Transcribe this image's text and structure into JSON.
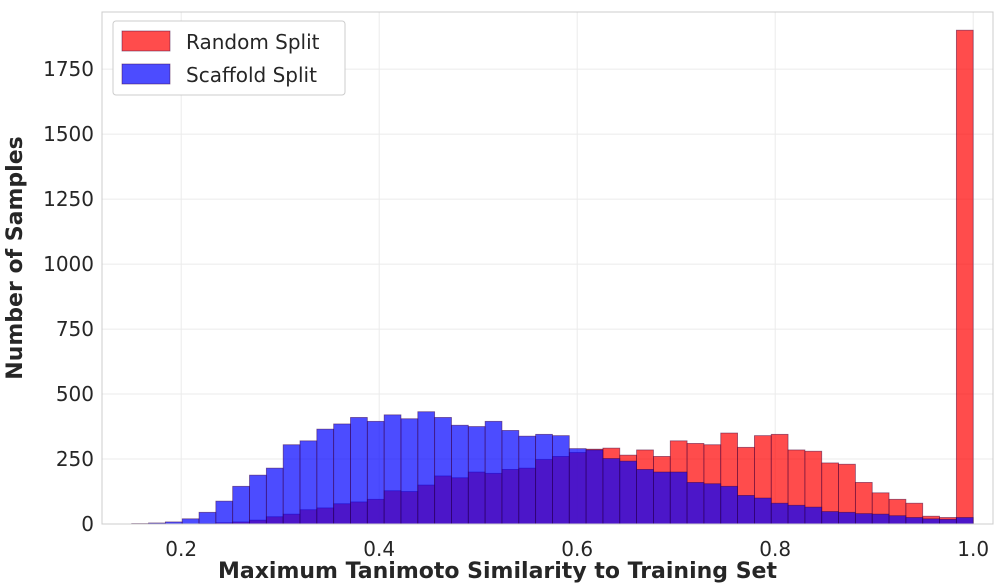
{
  "chart_data": {
    "type": "bar",
    "subtype": "overlapping-histogram",
    "xlabel": "Maximum Tanimoto Similarity to Training Set",
    "ylabel": "Number of Samples",
    "xlim": [
      0.12,
      1.02
    ],
    "ylim": [
      0,
      1970
    ],
    "x_ticks": [
      0.2,
      0.4,
      0.6,
      0.8,
      1.0
    ],
    "x_tick_labels": [
      "0.2",
      "0.4",
      "0.6",
      "0.8",
      "1.0"
    ],
    "y_ticks": [
      0,
      250,
      500,
      750,
      1000,
      1250,
      1500,
      1750
    ],
    "y_tick_labels": [
      "0",
      "250",
      "500",
      "750",
      "1000",
      "1250",
      "1500",
      "1750"
    ],
    "grid": true,
    "legend_position": "top-left",
    "bin_width": 0.017,
    "bin_starts": [
      0.15,
      0.167,
      0.184,
      0.201,
      0.218,
      0.235,
      0.252,
      0.269,
      0.286,
      0.303,
      0.32,
      0.337,
      0.354,
      0.371,
      0.388,
      0.405,
      0.422,
      0.439,
      0.456,
      0.473,
      0.49,
      0.507,
      0.524,
      0.541,
      0.558,
      0.575,
      0.592,
      0.609,
      0.626,
      0.643,
      0.66,
      0.677,
      0.694,
      0.711,
      0.728,
      0.745,
      0.762,
      0.779,
      0.796,
      0.813,
      0.83,
      0.847,
      0.864,
      0.881,
      0.898,
      0.915,
      0.932,
      0.949,
      0.966,
      0.983
    ],
    "series": [
      {
        "name": "Random Split",
        "color": "#ff0000",
        "opacity": 0.7,
        "values": [
          0,
          0,
          0,
          0,
          2,
          5,
          8,
          15,
          28,
          38,
          55,
          62,
          78,
          85,
          95,
          128,
          125,
          150,
          185,
          178,
          200,
          195,
          210,
          215,
          248,
          260,
          275,
          288,
          292,
          265,
          285,
          260,
          320,
          310,
          305,
          350,
          295,
          340,
          345,
          285,
          280,
          235,
          230,
          160,
          120,
          95,
          80,
          30,
          25,
          1900
        ]
      },
      {
        "name": "Scaffold Split",
        "color": "#0000ff",
        "opacity": 0.7,
        "values": [
          2,
          4,
          8,
          20,
          45,
          88,
          145,
          188,
          215,
          305,
          320,
          365,
          385,
          410,
          395,
          420,
          405,
          432,
          410,
          380,
          375,
          395,
          360,
          338,
          345,
          340,
          290,
          285,
          252,
          242,
          210,
          200,
          200,
          160,
          155,
          145,
          110,
          100,
          80,
          72,
          65,
          48,
          45,
          40,
          38,
          32,
          25,
          20,
          18,
          25
        ]
      }
    ]
  }
}
